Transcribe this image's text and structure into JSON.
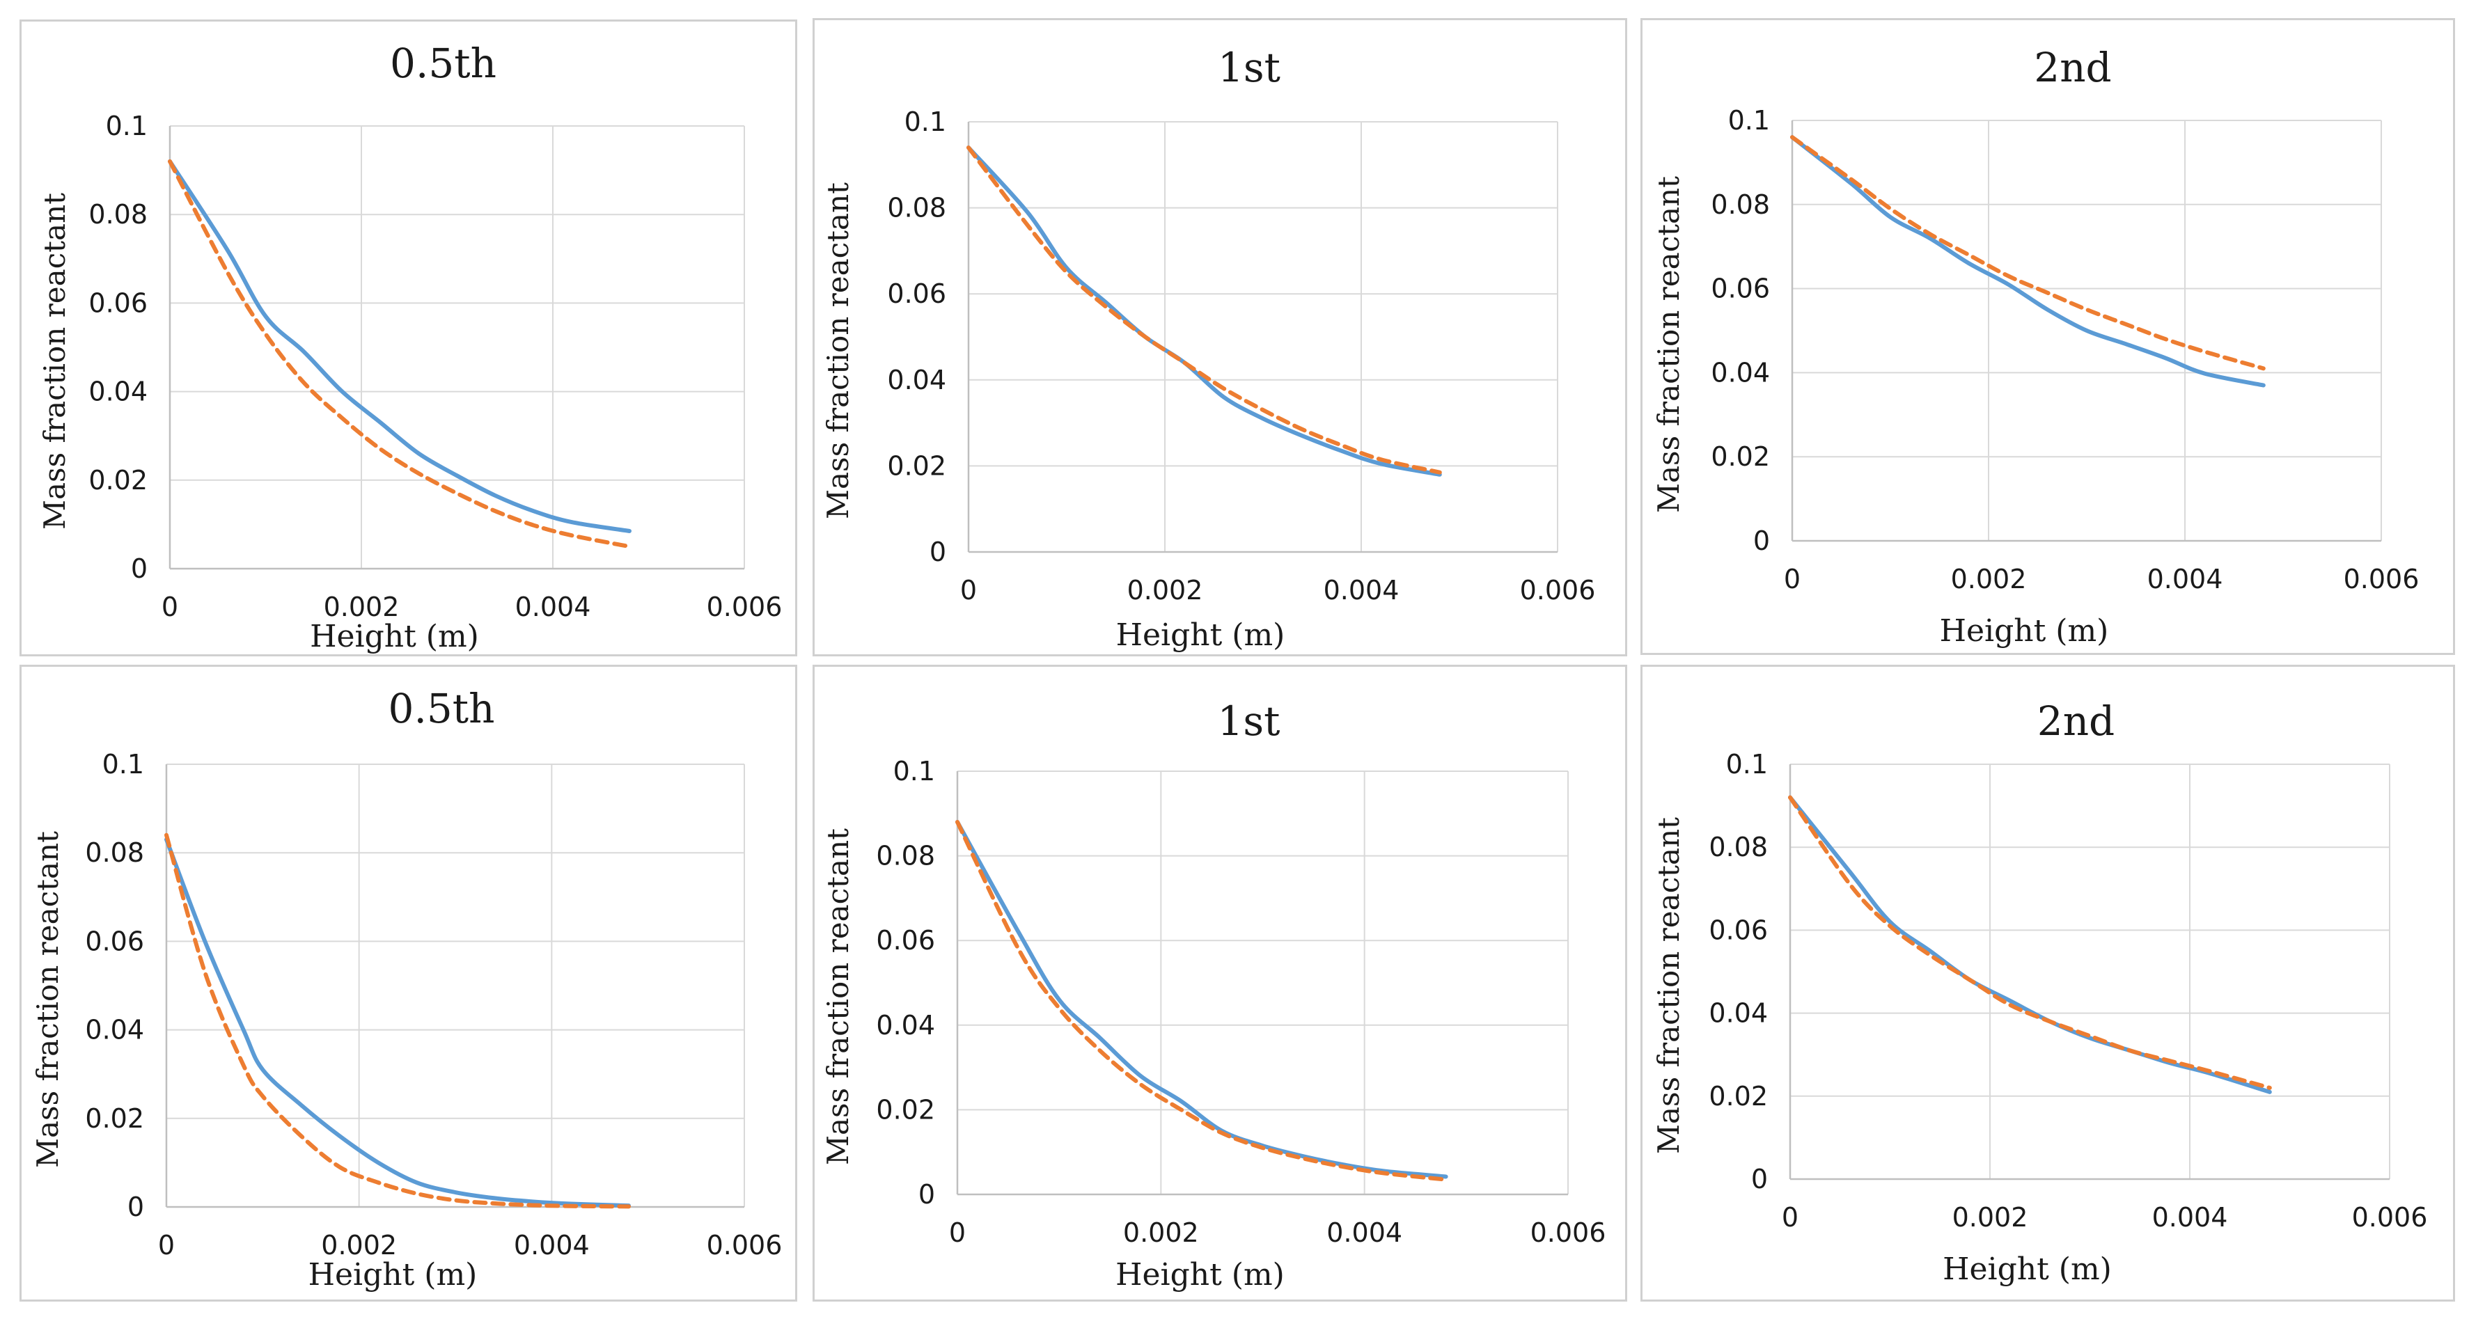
{
  "chart_data": [
    {
      "type": "line",
      "title": "0.5th",
      "xlabel": "Height (m)",
      "ylabel": "Mass fraction reactant",
      "xlim": [
        0,
        0.006
      ],
      "ylim": [
        0,
        0.1
      ],
      "x_ticks": [
        "0",
        "0.002",
        "0.004",
        "0.006"
      ],
      "y_ticks": [
        "0",
        "0.02",
        "0.04",
        "0.06",
        "0.08",
        "0.1"
      ],
      "grid": true,
      "x": [
        0,
        0.0006,
        0.001,
        0.0014,
        0.0018,
        0.0022,
        0.0026,
        0.003,
        0.0034,
        0.0038,
        0.0042,
        0.0048
      ],
      "series": [
        {
          "name": "solid",
          "color": "#5b9bd5",
          "dash": false,
          "values": [
            0.092,
            0.072,
            0.057,
            0.049,
            0.04,
            0.033,
            0.026,
            0.021,
            0.0165,
            0.013,
            0.0105,
            0.0085
          ]
        },
        {
          "name": "dashed",
          "color": "#ed7d31",
          "dash": true,
          "values": [
            0.092,
            0.067,
            0.053,
            0.042,
            0.034,
            0.027,
            0.0215,
            0.017,
            0.013,
            0.0098,
            0.0075,
            0.005
          ]
        }
      ]
    },
    {
      "type": "line",
      "title": "1st",
      "xlabel": "Height (m)",
      "ylabel": "Mass fraction reactant",
      "xlim": [
        0,
        0.006
      ],
      "ylim": [
        0,
        0.1
      ],
      "x_ticks": [
        "0",
        "0.002",
        "0.004",
        "0.006"
      ],
      "y_ticks": [
        "0",
        "0.02",
        "0.04",
        "0.06",
        "0.08",
        "0.1"
      ],
      "grid": true,
      "x": [
        0,
        0.0006,
        0.001,
        0.0014,
        0.0018,
        0.0022,
        0.0026,
        0.003,
        0.0034,
        0.0038,
        0.0042,
        0.0048
      ],
      "series": [
        {
          "name": "solid",
          "color": "#5b9bd5",
          "dash": false,
          "values": [
            0.094,
            0.079,
            0.066,
            0.058,
            0.05,
            0.044,
            0.036,
            0.031,
            0.027,
            0.0235,
            0.0205,
            0.018
          ]
        },
        {
          "name": "dashed",
          "color": "#ed7d31",
          "dash": true,
          "values": [
            0.094,
            0.076,
            0.065,
            0.057,
            0.05,
            0.044,
            0.038,
            0.033,
            0.0285,
            0.0248,
            0.0215,
            0.0185
          ]
        }
      ]
    },
    {
      "type": "line",
      "title": "2nd",
      "xlabel": "Height (m)",
      "ylabel": "Mass fraction reactant",
      "xlim": [
        0,
        0.006
      ],
      "ylim": [
        0,
        0.1
      ],
      "x_ticks": [
        "0",
        "0.002",
        "0.004",
        "0.006"
      ],
      "y_ticks": [
        "0",
        "0.02",
        "0.04",
        "0.06",
        "0.08",
        "0.1"
      ],
      "grid": true,
      "x": [
        0,
        0.0006,
        0.001,
        0.0014,
        0.0018,
        0.0022,
        0.0026,
        0.003,
        0.0034,
        0.0038,
        0.0042,
        0.0048
      ],
      "series": [
        {
          "name": "solid",
          "color": "#5b9bd5",
          "dash": false,
          "values": [
            0.096,
            0.085,
            0.077,
            0.072,
            0.066,
            0.061,
            0.055,
            0.05,
            0.0468,
            0.0435,
            0.0398,
            0.037
          ]
        },
        {
          "name": "dashed",
          "color": "#ed7d31",
          "dash": true,
          "values": [
            0.096,
            0.086,
            0.079,
            0.073,
            0.068,
            0.063,
            0.059,
            0.055,
            0.0515,
            0.048,
            0.045,
            0.041
          ]
        }
      ]
    },
    {
      "type": "line",
      "title": "0.5th",
      "xlabel": "Height (m)",
      "ylabel": "Mass fraction reactant",
      "xlim": [
        0,
        0.006
      ],
      "ylim": [
        0,
        0.1
      ],
      "x_ticks": [
        "0",
        "0.002",
        "0.004",
        "0.006"
      ],
      "y_ticks": [
        "0",
        "0.02",
        "0.04",
        "0.06",
        "0.08",
        "0.1"
      ],
      "grid": true,
      "x": [
        0,
        0.0004,
        0.0008,
        0.001,
        0.0014,
        0.0018,
        0.0022,
        0.0026,
        0.003,
        0.0034,
        0.0038,
        0.0042,
        0.0048
      ],
      "series": [
        {
          "name": "solid",
          "color": "#5b9bd5",
          "dash": false,
          "values": [
            0.083,
            0.06,
            0.04,
            0.031,
            0.023,
            0.016,
            0.01,
            0.0055,
            0.0033,
            0.002,
            0.0012,
            0.0007,
            0.0003
          ]
        },
        {
          "name": "dashed",
          "color": "#ed7d31",
          "dash": true,
          "values": [
            0.084,
            0.053,
            0.032,
            0.025,
            0.016,
            0.009,
            0.0055,
            0.003,
            0.0015,
            0.0008,
            0.0004,
            0.0002,
            0.0001
          ]
        }
      ]
    },
    {
      "type": "line",
      "title": "1st",
      "xlabel": "Height (m)",
      "ylabel": "Mass fraction reactant",
      "xlim": [
        0,
        0.006
      ],
      "ylim": [
        0,
        0.1
      ],
      "x_ticks": [
        "0",
        "0.002",
        "0.004",
        "0.006"
      ],
      "y_ticks": [
        "0",
        "0.02",
        "0.04",
        "0.06",
        "0.08",
        "0.1"
      ],
      "grid": true,
      "x": [
        0,
        0.0006,
        0.001,
        0.0014,
        0.0018,
        0.0022,
        0.0026,
        0.003,
        0.0034,
        0.0038,
        0.0042,
        0.0048
      ],
      "series": [
        {
          "name": "solid",
          "color": "#5b9bd5",
          "dash": false,
          "values": [
            0.088,
            0.062,
            0.046,
            0.037,
            0.028,
            0.022,
            0.015,
            0.0115,
            0.009,
            0.007,
            0.0055,
            0.0042
          ]
        },
        {
          "name": "dashed",
          "color": "#ed7d31",
          "dash": true,
          "values": [
            0.088,
            0.058,
            0.044,
            0.034,
            0.026,
            0.02,
            0.0145,
            0.011,
            0.0085,
            0.0065,
            0.005,
            0.0035
          ]
        }
      ]
    },
    {
      "type": "line",
      "title": "2nd",
      "xlabel": "Height (m)",
      "ylabel": "Mass fraction reactant",
      "xlim": [
        0,
        0.006
      ],
      "ylim": [
        0,
        0.1
      ],
      "x_ticks": [
        "0",
        "0.002",
        "0.004",
        "0.006"
      ],
      "y_ticks": [
        "0",
        "0.02",
        "0.04",
        "0.06",
        "0.08",
        "0.1"
      ],
      "grid": true,
      "x": [
        0,
        0.0006,
        0.001,
        0.0014,
        0.0018,
        0.0022,
        0.0026,
        0.003,
        0.0034,
        0.0038,
        0.0042,
        0.0048
      ],
      "series": [
        {
          "name": "solid",
          "color": "#5b9bd5",
          "dash": false,
          "values": [
            0.092,
            0.074,
            0.062,
            0.055,
            0.048,
            0.043,
            0.038,
            0.034,
            0.031,
            0.028,
            0.0255,
            0.021
          ]
        },
        {
          "name": "dashed",
          "color": "#ed7d31",
          "dash": true,
          "values": [
            0.092,
            0.071,
            0.061,
            0.054,
            0.048,
            0.042,
            0.038,
            0.0345,
            0.031,
            0.0285,
            0.026,
            0.022
          ]
        }
      ]
    }
  ]
}
